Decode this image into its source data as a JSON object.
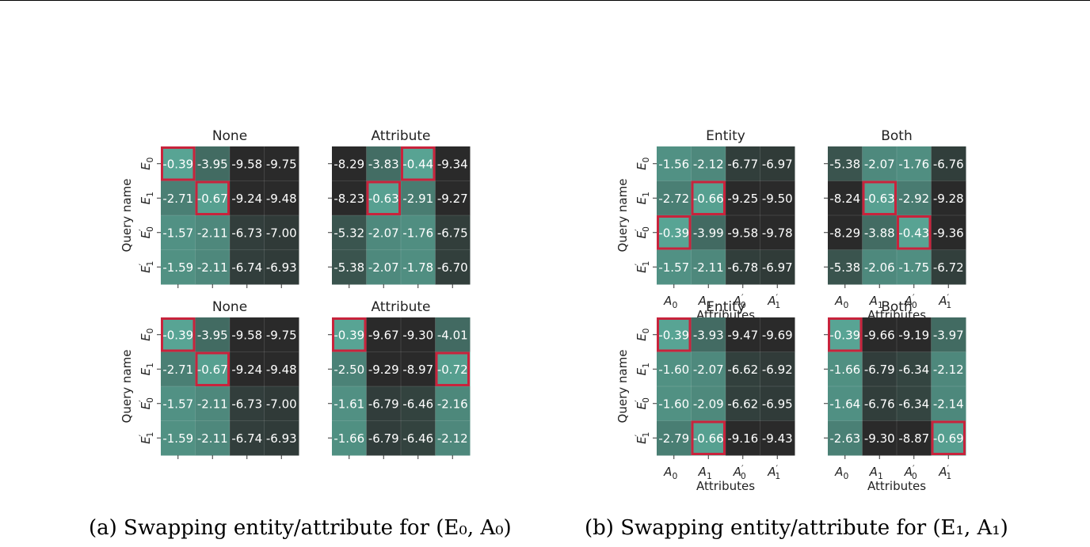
{
  "colors": {
    "low": "#2a2a2a",
    "high": "#58a494",
    "highlight": "#c8233c",
    "text": "#ffffff",
    "axis_text": "#222222"
  },
  "panels": {
    "a": {
      "caption": "(a) Swapping entity/attribute for (E₀, A₀)"
    },
    "b": {
      "caption": "(b) Swapping entity/attribute for (E₁, A₁)"
    }
  },
  "chart_data": [
    {
      "type": "heatmap",
      "figure": "a",
      "title": "None",
      "ylabel": "Query name",
      "xlabel": "",
      "rows": [
        "E0",
        "E1",
        "E0'",
        "E1'"
      ],
      "columns": [
        "A0",
        "A1",
        "A0'",
        "A1'"
      ],
      "values": [
        [
          -0.39,
          -3.95,
          -9.58,
          -9.75
        ],
        [
          -2.71,
          -0.67,
          -9.24,
          -9.48
        ],
        [
          -1.57,
          -2.11,
          -6.73,
          -7.0
        ],
        [
          -1.59,
          -2.11,
          -6.74,
          -6.93
        ]
      ],
      "highlight": [
        [
          0,
          0
        ],
        [
          1,
          1
        ]
      ],
      "show_x_ticklabels": false,
      "show_y_ticklabels": true
    },
    {
      "type": "heatmap",
      "figure": "a",
      "title": "Attribute",
      "ylabel": "",
      "xlabel": "",
      "rows": [
        "E0",
        "E1",
        "E0'",
        "E1'"
      ],
      "columns": [
        "A0",
        "A1",
        "A0'",
        "A1'"
      ],
      "values": [
        [
          -8.29,
          -3.83,
          -0.44,
          -9.34
        ],
        [
          -8.23,
          -0.63,
          -2.91,
          -9.27
        ],
        [
          -5.32,
          -2.07,
          -1.76,
          -6.75
        ],
        [
          -5.38,
          -2.07,
          -1.78,
          -6.7
        ]
      ],
      "highlight": [
        [
          0,
          2
        ],
        [
          1,
          1
        ]
      ],
      "show_x_ticklabels": false,
      "show_y_ticklabels": false
    },
    {
      "type": "heatmap",
      "figure": "a",
      "title": "Entity",
      "ylabel": "Query name",
      "xlabel": "Attributes",
      "rows": [
        "E0",
        "E1",
        "E0'",
        "E1'"
      ],
      "columns": [
        "A0",
        "A1",
        "A0'",
        "A1'"
      ],
      "values": [
        [
          -1.56,
          -2.12,
          -6.77,
          -6.97
        ],
        [
          -2.72,
          -0.66,
          -9.25,
          -9.5
        ],
        [
          -0.39,
          -3.99,
          -9.58,
          -9.78
        ],
        [
          -1.57,
          -2.11,
          -6.78,
          -6.97
        ]
      ],
      "highlight": [
        [
          1,
          1
        ],
        [
          2,
          0
        ]
      ],
      "show_x_ticklabels": true,
      "show_y_ticklabels": true
    },
    {
      "type": "heatmap",
      "figure": "a",
      "title": "Both",
      "ylabel": "",
      "xlabel": "Attributes",
      "rows": [
        "E0",
        "E1",
        "E0'",
        "E1'"
      ],
      "columns": [
        "A0",
        "A1",
        "A0'",
        "A1'"
      ],
      "values": [
        [
          -5.38,
          -2.07,
          -1.76,
          -6.76
        ],
        [
          -8.24,
          -0.63,
          -2.92,
          -9.28
        ],
        [
          -8.29,
          -3.88,
          -0.43,
          -9.36
        ],
        [
          -5.38,
          -2.06,
          -1.75,
          -6.72
        ]
      ],
      "highlight": [
        [
          1,
          1
        ],
        [
          2,
          2
        ]
      ],
      "show_x_ticklabels": true,
      "show_y_ticklabels": false
    },
    {
      "type": "heatmap",
      "figure": "b",
      "title": "None",
      "ylabel": "Query name",
      "xlabel": "",
      "rows": [
        "E0",
        "E1",
        "E0'",
        "E1'"
      ],
      "columns": [
        "A0",
        "A1",
        "A0'",
        "A1'"
      ],
      "values": [
        [
          -0.39,
          -3.95,
          -9.58,
          -9.75
        ],
        [
          -2.71,
          -0.67,
          -9.24,
          -9.48
        ],
        [
          -1.57,
          -2.11,
          -6.73,
          -7.0
        ],
        [
          -1.59,
          -2.11,
          -6.74,
          -6.93
        ]
      ],
      "highlight": [
        [
          0,
          0
        ],
        [
          1,
          1
        ]
      ],
      "show_x_ticklabels": false,
      "show_y_ticklabels": true
    },
    {
      "type": "heatmap",
      "figure": "b",
      "title": "Attribute",
      "ylabel": "",
      "xlabel": "",
      "rows": [
        "E0",
        "E1",
        "E0'",
        "E1'"
      ],
      "columns": [
        "A0",
        "A1",
        "A0'",
        "A1'"
      ],
      "values": [
        [
          -0.39,
          -9.67,
          -9.3,
          -4.01
        ],
        [
          -2.5,
          -9.29,
          -8.97,
          -0.72
        ],
        [
          -1.61,
          -6.79,
          -6.46,
          -2.16
        ],
        [
          -1.66,
          -6.79,
          -6.46,
          -2.12
        ]
      ],
      "highlight": [
        [
          0,
          0
        ],
        [
          1,
          3
        ]
      ],
      "show_x_ticklabels": false,
      "show_y_ticklabels": false
    },
    {
      "type": "heatmap",
      "figure": "b",
      "title": "Entity",
      "ylabel": "Query name",
      "xlabel": "Attributes",
      "rows": [
        "E0",
        "E1",
        "E0'",
        "E1'"
      ],
      "columns": [
        "A0",
        "A1",
        "A0'",
        "A1'"
      ],
      "values": [
        [
          -0.39,
          -3.93,
          -9.47,
          -9.69
        ],
        [
          -1.6,
          -2.07,
          -6.62,
          -6.92
        ],
        [
          -1.6,
          -2.09,
          -6.62,
          -6.95
        ],
        [
          -2.79,
          -0.66,
          -9.16,
          -9.43
        ]
      ],
      "highlight": [
        [
          0,
          0
        ],
        [
          3,
          1
        ]
      ],
      "show_x_ticklabels": true,
      "show_y_ticklabels": true
    },
    {
      "type": "heatmap",
      "figure": "b",
      "title": "Both",
      "ylabel": "",
      "xlabel": "Attributes",
      "rows": [
        "E0",
        "E1",
        "E0'",
        "E1'"
      ],
      "columns": [
        "A0",
        "A1",
        "A0'",
        "A1'"
      ],
      "values": [
        [
          -0.39,
          -9.66,
          -9.19,
          -3.97
        ],
        [
          -1.66,
          -6.79,
          -6.34,
          -2.12
        ],
        [
          -1.64,
          -6.76,
          -6.34,
          -2.14
        ],
        [
          -2.63,
          -9.3,
          -8.87,
          -0.69
        ]
      ],
      "highlight": [
        [
          0,
          0
        ],
        [
          3,
          3
        ]
      ],
      "show_x_ticklabels": true,
      "show_y_ticklabels": false
    }
  ]
}
